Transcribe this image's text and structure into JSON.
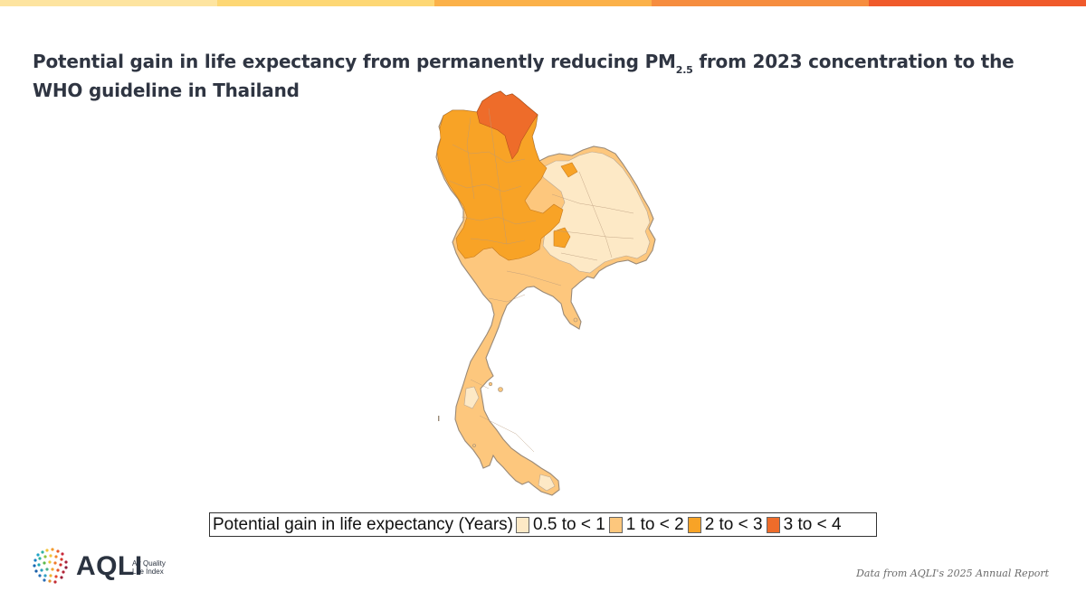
{
  "header": {
    "title_prefix": "Potential gain in life expectancy from permanently reducing PM",
    "title_subscript": "2.5",
    "title_suffix": " from 2023 concentration to the WHO guideline in Thailand",
    "bar_colors": [
      "#fde4a0",
      "#fdd774",
      "#fbb149",
      "#f68d3f",
      "#f05a2b"
    ]
  },
  "map": {
    "country": "Thailand",
    "color_classes": {
      "0.5 to < 1": "#fde9c6",
      "1 to < 2": "#fdc77d",
      "2 to < 3": "#f8a326",
      "3 to < 4": "#ee6c2a"
    },
    "border_color": "#9a8a78"
  },
  "legend": {
    "title": "Potential gain in life expectancy (Years)",
    "items": [
      {
        "label": "0.5 to < 1",
        "color": "#fde9c6"
      },
      {
        "label": "1 to < 2",
        "color": "#fdc77d"
      },
      {
        "label": "2 to < 3",
        "color": "#f8a326"
      },
      {
        "label": "3 to < 4",
        "color": "#ee6c2a"
      }
    ]
  },
  "footer": {
    "logo_text": "AQLI",
    "logo_sub_line1": "Air Quality",
    "logo_sub_line2": "Life Index",
    "source": "Data from AQLI's 2025 Annual Report"
  }
}
